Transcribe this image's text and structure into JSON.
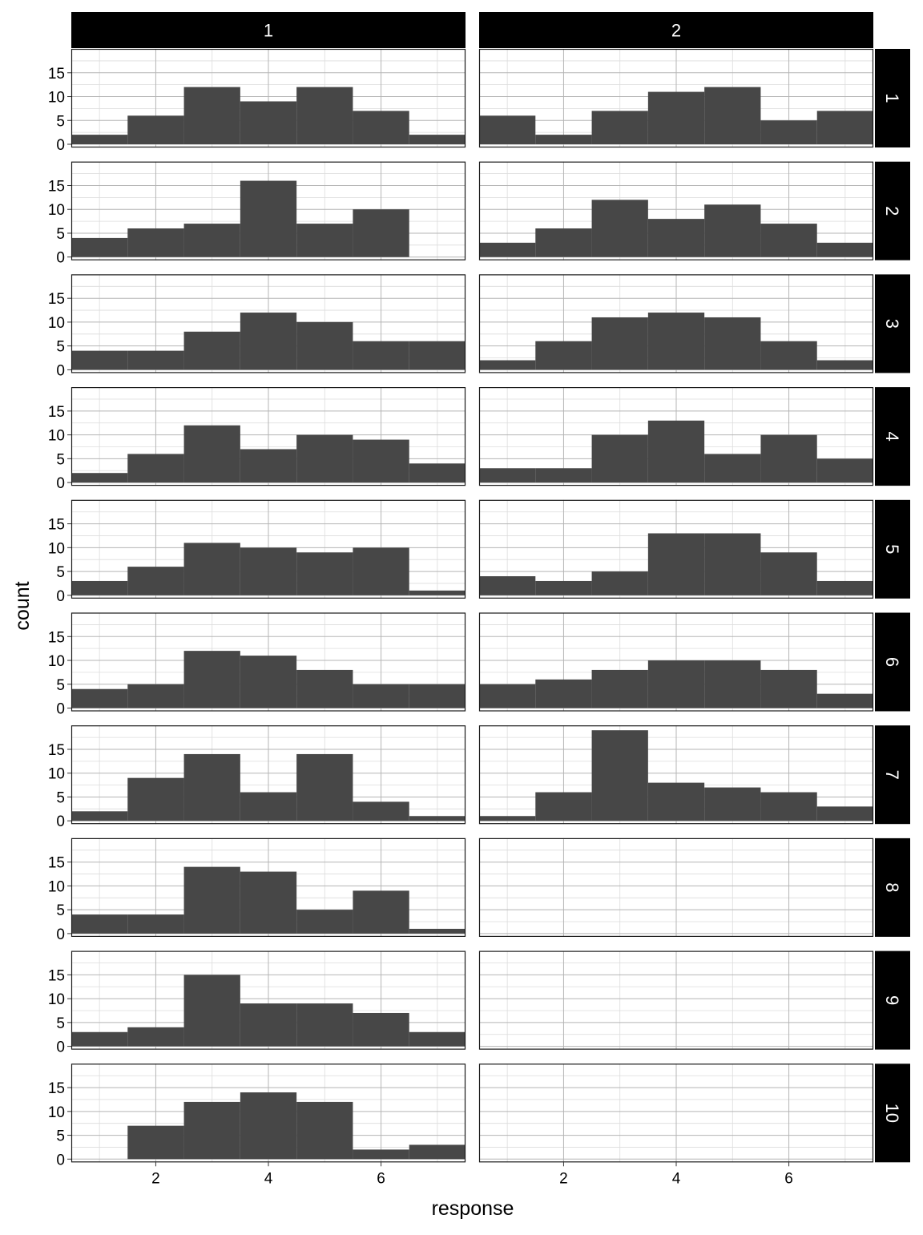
{
  "chart_data": {
    "type": "bar",
    "layout": "facet_grid",
    "xlabel": "response",
    "ylabel": "count",
    "col_facets": [
      "1",
      "2"
    ],
    "row_facets": [
      "1",
      "2",
      "3",
      "4",
      "5",
      "6",
      "7",
      "8",
      "9",
      "10"
    ],
    "bins": [
      1,
      2,
      3,
      4,
      5,
      6,
      7
    ],
    "bin_width": 1,
    "xlim": [
      0.5,
      7.5
    ],
    "ylim": [
      0,
      19
    ],
    "x_ticks": [
      2,
      4,
      6
    ],
    "y_ticks": [
      0,
      5,
      10,
      15
    ],
    "panels": [
      {
        "row": "1",
        "col": "1",
        "counts": [
          2,
          6,
          12,
          9,
          12,
          7,
          2
        ]
      },
      {
        "row": "1",
        "col": "2",
        "counts": [
          6,
          2,
          7,
          11,
          12,
          5,
          7
        ]
      },
      {
        "row": "2",
        "col": "1",
        "counts": [
          4,
          6,
          7,
          16,
          7,
          10,
          0
        ]
      },
      {
        "row": "2",
        "col": "2",
        "counts": [
          3,
          6,
          12,
          8,
          11,
          7,
          3
        ]
      },
      {
        "row": "3",
        "col": "1",
        "counts": [
          4,
          4,
          8,
          12,
          10,
          6,
          6
        ]
      },
      {
        "row": "3",
        "col": "2",
        "counts": [
          2,
          6,
          11,
          12,
          11,
          6,
          2
        ]
      },
      {
        "row": "4",
        "col": "1",
        "counts": [
          2,
          6,
          12,
          7,
          10,
          9,
          4
        ]
      },
      {
        "row": "4",
        "col": "2",
        "counts": [
          3,
          3,
          10,
          13,
          6,
          10,
          5
        ]
      },
      {
        "row": "5",
        "col": "1",
        "counts": [
          3,
          6,
          11,
          10,
          9,
          10,
          1
        ]
      },
      {
        "row": "5",
        "col": "2",
        "counts": [
          4,
          3,
          5,
          13,
          13,
          9,
          3
        ]
      },
      {
        "row": "6",
        "col": "1",
        "counts": [
          4,
          5,
          12,
          11,
          8,
          5,
          5
        ]
      },
      {
        "row": "6",
        "col": "2",
        "counts": [
          5,
          6,
          8,
          10,
          10,
          8,
          3
        ]
      },
      {
        "row": "7",
        "col": "1",
        "counts": [
          2,
          9,
          14,
          6,
          14,
          4,
          1
        ]
      },
      {
        "row": "7",
        "col": "2",
        "counts": [
          1,
          6,
          19,
          8,
          7,
          6,
          3
        ]
      },
      {
        "row": "8",
        "col": "1",
        "counts": [
          4,
          4,
          14,
          13,
          5,
          9,
          1
        ]
      },
      {
        "row": "8",
        "col": "2",
        "counts": []
      },
      {
        "row": "9",
        "col": "1",
        "counts": [
          3,
          4,
          15,
          9,
          9,
          7,
          3
        ]
      },
      {
        "row": "9",
        "col": "2",
        "counts": []
      },
      {
        "row": "10",
        "col": "1",
        "counts": [
          0,
          7,
          12,
          14,
          12,
          2,
          3
        ]
      },
      {
        "row": "10",
        "col": "2",
        "counts": []
      }
    ],
    "colors": {
      "bar": "#474747",
      "strip_bg": "#000000",
      "strip_text": "#ffffff",
      "grid_major": "#b5b5b5",
      "grid_minor": "#dcdcdc",
      "panel_border": "#1a1a1a",
      "axis_text": "#000000"
    },
    "grid": true,
    "legend": "none"
  }
}
